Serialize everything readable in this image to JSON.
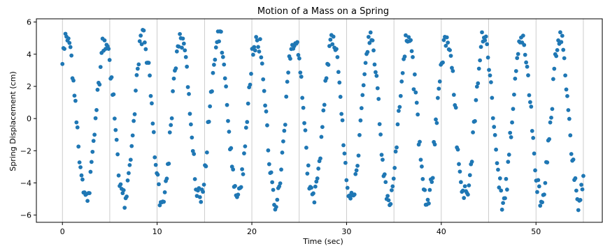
{
  "chart_data": {
    "type": "scatter",
    "title": "Motion of a Mass on a Spring",
    "xlabel": "Time (sec)",
    "ylabel": "Spring Displacement (cm)",
    "xlim": [
      -2.75,
      57.0
    ],
    "ylim": [
      -6.45,
      6.2
    ],
    "xticks": [
      0,
      10,
      20,
      30,
      40,
      50
    ],
    "xtick_labels": [
      "0",
      "10",
      "20",
      "30",
      "40",
      "50"
    ],
    "yticks": [
      -6,
      -4,
      -2,
      0,
      2,
      4,
      6
    ],
    "ytick_labels": [
      "−6",
      "−4",
      "−2",
      "0",
      "2",
      "4",
      "6"
    ],
    "grid": {
      "x": true,
      "y": false
    },
    "xgrid_at": [
      0,
      5,
      10,
      15,
      20,
      25,
      30,
      35,
      40,
      45,
      50,
      55
    ],
    "color": "#1f77b4",
    "model": {
      "description": "sampled displacement",
      "t_start": 0.0,
      "t_end": 55.0,
      "n_points": 520,
      "amplitude": 5.0,
      "period": 4.0,
      "phase_value_at_t0": 3.5,
      "noise_sd": 0.35
    }
  }
}
